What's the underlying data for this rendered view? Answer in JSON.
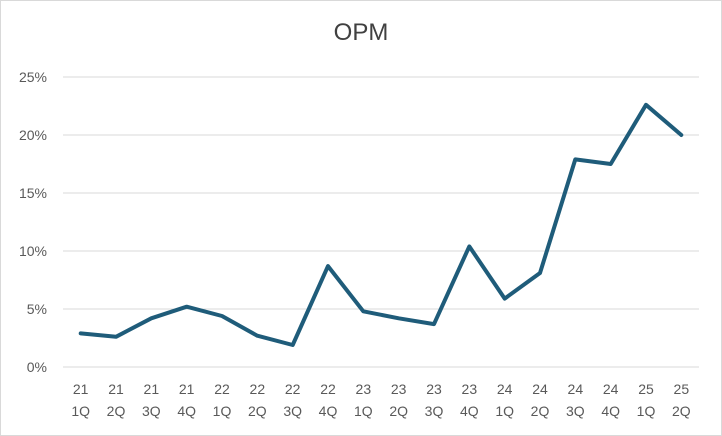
{
  "chart_data": {
    "type": "line",
    "title": "OPM",
    "xlabel": "",
    "ylabel": "",
    "categories": [
      [
        "21",
        "1Q"
      ],
      [
        "21",
        "2Q"
      ],
      [
        "21",
        "3Q"
      ],
      [
        "21",
        "4Q"
      ],
      [
        "22",
        "1Q"
      ],
      [
        "22",
        "2Q"
      ],
      [
        "22",
        "3Q"
      ],
      [
        "22",
        "4Q"
      ],
      [
        "23",
        "1Q"
      ],
      [
        "23",
        "2Q"
      ],
      [
        "23",
        "3Q"
      ],
      [
        "23",
        "4Q"
      ],
      [
        "24",
        "1Q"
      ],
      [
        "24",
        "2Q"
      ],
      [
        "24",
        "3Q"
      ],
      [
        "24",
        "4Q"
      ],
      [
        "25",
        "1Q"
      ],
      [
        "25",
        "2Q"
      ]
    ],
    "series": [
      {
        "values": [
          2.9,
          2.6,
          4.2,
          5.2,
          4.4,
          2.7,
          1.9,
          8.7,
          4.8,
          4.2,
          3.7,
          10.4,
          5.9,
          8.1,
          17.9,
          17.5,
          22.6,
          20.0
        ],
        "color": "#1f5c7a"
      }
    ],
    "ylim": [
      0,
      25
    ],
    "yticks": [
      0,
      5,
      10,
      15,
      20,
      25
    ],
    "ytick_labels": [
      "0%",
      "5%",
      "10%",
      "15%",
      "20%",
      "25%"
    ],
    "grid": "horizontal",
    "legend": "none"
  }
}
